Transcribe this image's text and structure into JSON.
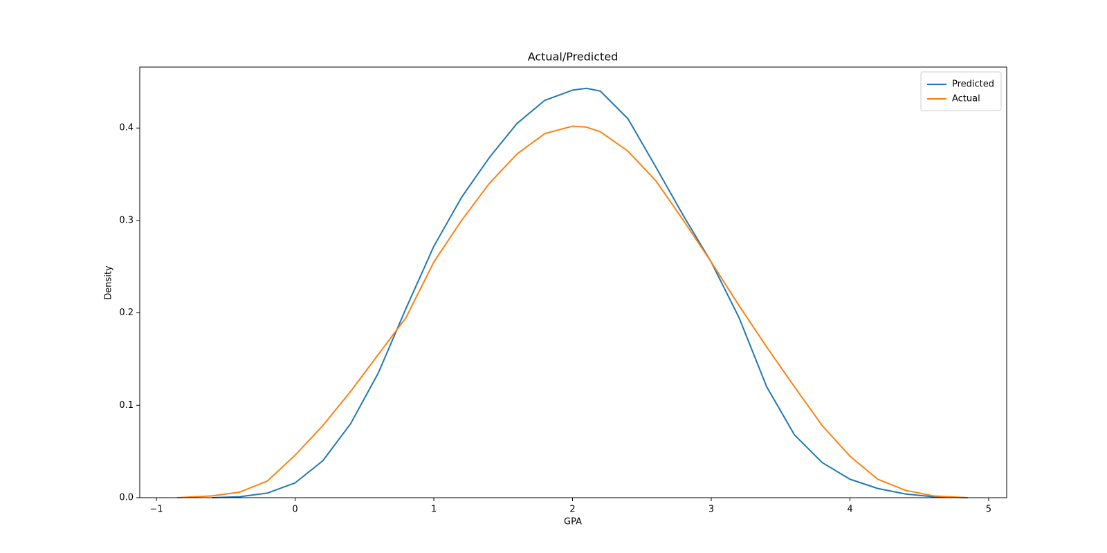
{
  "chart_data": {
    "type": "line",
    "title": "Actual/Predicted",
    "xlabel": "GPA",
    "ylabel": "Density",
    "x": [
      -0.85,
      -0.6,
      -0.4,
      -0.2,
      0,
      0.2,
      0.4,
      0.6,
      0.8,
      1.0,
      1.2,
      1.4,
      1.6,
      1.8,
      2.0,
      2.1,
      2.2,
      2.4,
      2.6,
      2.8,
      3.0,
      3.2,
      3.4,
      3.6,
      3.8,
      4.0,
      4.2,
      4.4,
      4.6,
      4.85
    ],
    "series": [
      {
        "name": "Predicted",
        "color": "#1f77b4",
        "values": [
          null,
          0.0,
          0.001,
          0.005,
          0.016,
          0.04,
          0.08,
          0.135,
          0.205,
          0.272,
          0.325,
          0.368,
          0.405,
          0.43,
          0.441,
          0.443,
          0.44,
          0.41,
          0.358,
          0.305,
          0.255,
          0.195,
          0.12,
          0.068,
          0.038,
          0.02,
          0.01,
          0.004,
          0.001,
          0.0
        ]
      },
      {
        "name": "Actual",
        "color": "#ff7f0e",
        "values": [
          0.0,
          0.002,
          0.006,
          0.018,
          0.046,
          0.078,
          0.115,
          0.155,
          0.195,
          0.255,
          0.3,
          0.34,
          0.372,
          0.394,
          0.402,
          0.401,
          0.396,
          0.375,
          0.343,
          0.3,
          0.255,
          0.208,
          0.163,
          0.12,
          0.078,
          0.045,
          0.02,
          0.008,
          0.002,
          0.0
        ]
      }
    ],
    "xlim": [
      -1.12,
      5.13
    ],
    "xticks": [
      {
        "value": -1,
        "label": "−1"
      },
      0,
      1,
      2,
      3,
      4,
      5
    ],
    "ylim": [
      0,
      0.466
    ],
    "yticks": [
      {
        "value": 0,
        "label": "0.0"
      },
      0.1,
      0.2,
      0.3,
      0.4
    ],
    "legend": "upper right"
  }
}
